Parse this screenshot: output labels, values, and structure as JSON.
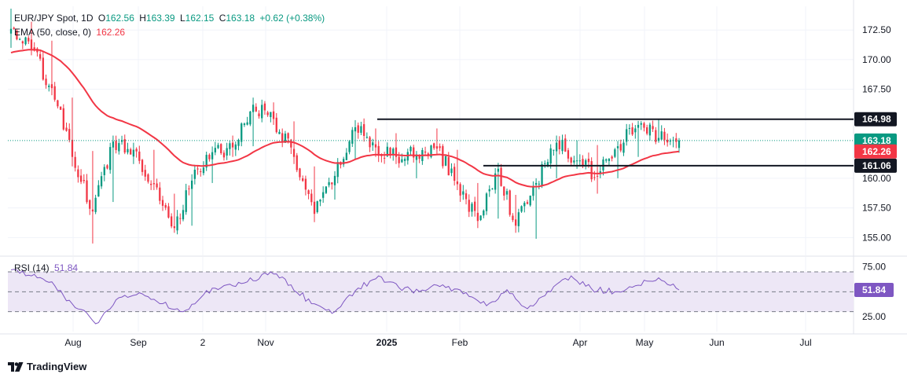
{
  "header": {
    "symbol": "EUR/JPY Spot, 1D",
    "open_label": "O",
    "open": "162.56",
    "high_label": "H",
    "high": "163.39",
    "low_label": "L",
    "low": "162.15",
    "close_label": "C",
    "close": "163.18",
    "change": "+0.62 (+0.38%)",
    "ema_label": "EMA (50, close, 0)",
    "ema_value": "162.26",
    "rsi_label": "RSI (14)",
    "rsi_value": "51.84"
  },
  "brand": {
    "name": "TradingView"
  },
  "colors": {
    "up": "#089981",
    "down": "#f23645",
    "ema": "#f23645",
    "rsi": "#7e57c2",
    "rsi_band": "#ede7f6",
    "level_line": "#131722"
  },
  "chart_data": [
    {
      "type": "candlestick",
      "title": "EUR/JPY Spot, 1D",
      "x_tick_labels": [
        "Aug",
        "Sep",
        "2",
        "Nov",
        "2025",
        "Feb",
        "Apr",
        "May",
        "Jun",
        "Jul"
      ],
      "y_tick_labels": [
        "172.50",
        "170.00",
        "167.50",
        "160.00",
        "157.50",
        "155.00"
      ],
      "ylim": [
        153.5,
        174.5
      ],
      "grid": true,
      "price_badges": [
        {
          "label": "164.98",
          "value": 164.98,
          "color": "#131722"
        },
        {
          "label": "163.18",
          "value": 163.18,
          "color": "#089981"
        },
        {
          "label": "162.26",
          "value": 162.26,
          "color": "#f23645"
        },
        {
          "label": "161.06",
          "value": 161.06,
          "color": "#131722"
        }
      ],
      "horizontal_levels": [
        {
          "value": 164.98,
          "from_month": "Dec",
          "to": "price-axis"
        },
        {
          "value": 161.06,
          "from_month": "Feb",
          "to": "price-axis"
        }
      ],
      "ohlc_anchors": [
        {
          "month": "Jul",
          "o": 171.8,
          "h": 174.3,
          "l": 171.0,
          "c": 172.6
        },
        {
          "month": "Jul",
          "o": 172.6,
          "h": 173.2,
          "l": 170.4,
          "c": 170.9
        },
        {
          "month": "Jul",
          "o": 170.9,
          "h": 171.6,
          "l": 167.0,
          "c": 167.6
        },
        {
          "month": "Aug",
          "o": 166.0,
          "h": 166.8,
          "l": 161.0,
          "c": 161.8
        },
        {
          "month": "Aug",
          "o": 161.8,
          "h": 162.3,
          "l": 154.5,
          "c": 157.2
        },
        {
          "month": "Aug",
          "o": 158.5,
          "h": 163.6,
          "l": 158.0,
          "c": 163.1
        },
        {
          "month": "Aug",
          "o": 162.0,
          "h": 163.0,
          "l": 161.2,
          "c": 162.4
        },
        {
          "month": "Sep",
          "o": 161.5,
          "h": 162.4,
          "l": 159.0,
          "c": 159.5
        },
        {
          "month": "Sep",
          "o": 158.0,
          "h": 158.7,
          "l": 155.4,
          "c": 155.8
        },
        {
          "month": "Sep",
          "o": 156.5,
          "h": 160.2,
          "l": 156.0,
          "c": 159.8
        },
        {
          "month": "Oct",
          "o": 160.0,
          "h": 162.5,
          "l": 159.6,
          "c": 162.2
        },
        {
          "month": "Oct",
          "o": 162.8,
          "h": 163.6,
          "l": 161.8,
          "c": 162.6
        },
        {
          "month": "Oct",
          "o": 163.0,
          "h": 166.8,
          "l": 162.7,
          "c": 166.2
        },
        {
          "month": "Nov",
          "o": 166.0,
          "h": 166.4,
          "l": 164.5,
          "c": 165.0
        },
        {
          "month": "Nov",
          "o": 164.0,
          "h": 164.8,
          "l": 161.2,
          "c": 161.8
        },
        {
          "month": "Nov",
          "o": 160.5,
          "h": 161.0,
          "l": 156.3,
          "c": 157.0
        },
        {
          "month": "Dec",
          "o": 158.5,
          "h": 160.6,
          "l": 158.2,
          "c": 160.2
        },
        {
          "month": "Dec",
          "o": 162.0,
          "h": 164.9,
          "l": 161.6,
          "c": 164.3
        },
        {
          "month": "Dec",
          "o": 163.8,
          "h": 164.2,
          "l": 161.8,
          "c": 162.6
        },
        {
          "month": "2025",
          "o": 163.0,
          "h": 163.8,
          "l": 161.2,
          "c": 161.8
        },
        {
          "month": "Jan",
          "o": 161.0,
          "h": 162.3,
          "l": 160.0,
          "c": 162.0
        },
        {
          "month": "Jan",
          "o": 163.2,
          "h": 164.2,
          "l": 162.0,
          "c": 162.5
        },
        {
          "month": "Feb",
          "o": 161.8,
          "h": 162.4,
          "l": 159.0,
          "c": 159.5
        },
        {
          "month": "Feb",
          "o": 159.0,
          "h": 159.6,
          "l": 155.8,
          "c": 156.4
        },
        {
          "month": "Feb",
          "o": 157.0,
          "h": 161.3,
          "l": 156.6,
          "c": 160.8
        },
        {
          "month": "Feb",
          "o": 158.2,
          "h": 158.6,
          "l": 155.4,
          "c": 156.0
        },
        {
          "month": "Mar",
          "o": 156.0,
          "h": 160.0,
          "l": 154.9,
          "c": 159.6
        },
        {
          "month": "Mar",
          "o": 160.5,
          "h": 163.6,
          "l": 160.0,
          "c": 163.0
        },
        {
          "month": "Mar",
          "o": 162.5,
          "h": 163.2,
          "l": 160.8,
          "c": 161.5
        },
        {
          "month": "Apr",
          "o": 162.2,
          "h": 162.8,
          "l": 158.7,
          "c": 160.2
        },
        {
          "month": "Apr",
          "o": 160.5,
          "h": 163.0,
          "l": 160.0,
          "c": 162.7
        },
        {
          "month": "May",
          "o": 162.0,
          "h": 164.8,
          "l": 161.8,
          "c": 164.5
        },
        {
          "month": "May",
          "o": 164.3,
          "h": 164.98,
          "l": 163.0,
          "c": 163.4
        },
        {
          "month": "May",
          "o": 162.56,
          "h": 163.39,
          "l": 162.15,
          "c": 163.18
        }
      ]
    },
    {
      "type": "line",
      "title": "RSI (14)",
      "y_tick_labels": [
        "75.00",
        "25.00"
      ],
      "ylim": [
        10,
        85
      ],
      "bands": {
        "upper": 70,
        "middle": 50,
        "lower": 30
      },
      "last_value": 51.84,
      "anchors": [
        {
          "month": "Jul",
          "value": 72
        },
        {
          "month": "Jul",
          "value": 66
        },
        {
          "month": "Jul",
          "value": 56
        },
        {
          "month": "Aug",
          "value": 34
        },
        {
          "month": "Aug",
          "value": 19
        },
        {
          "month": "Aug",
          "value": 44
        },
        {
          "month": "Sep",
          "value": 49
        },
        {
          "month": "Sep",
          "value": 38
        },
        {
          "month": "Sep",
          "value": 30
        },
        {
          "month": "Oct",
          "value": 47
        },
        {
          "month": "Oct",
          "value": 57
        },
        {
          "month": "Oct",
          "value": 60
        },
        {
          "month": "Nov",
          "value": 70
        },
        {
          "month": "Nov",
          "value": 57
        },
        {
          "month": "Nov",
          "value": 38
        },
        {
          "month": "Dec",
          "value": 30
        },
        {
          "month": "Dec",
          "value": 51
        },
        {
          "month": "Dec",
          "value": 66
        },
        {
          "month": "2025",
          "value": 54
        },
        {
          "month": "Jan",
          "value": 50
        },
        {
          "month": "Jan",
          "value": 57
        },
        {
          "month": "Feb",
          "value": 48
        },
        {
          "month": "Feb",
          "value": 36
        },
        {
          "month": "Feb",
          "value": 52
        },
        {
          "month": "Mar",
          "value": 33
        },
        {
          "month": "Mar",
          "value": 50
        },
        {
          "month": "Mar",
          "value": 66
        },
        {
          "month": "Apr",
          "value": 53
        },
        {
          "month": "Apr",
          "value": 50
        },
        {
          "month": "May",
          "value": 56
        },
        {
          "month": "May",
          "value": 64
        },
        {
          "month": "May",
          "value": 51.84
        }
      ]
    }
  ]
}
